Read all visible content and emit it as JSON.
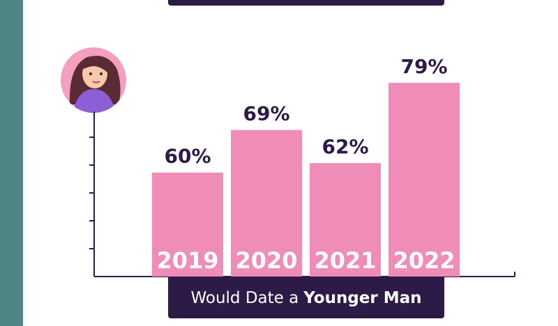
{
  "chart_data": {
    "type": "bar",
    "categories": [
      "2019",
      "2020",
      "2021",
      "2022"
    ],
    "values": [
      60,
      69,
      62,
      79
    ],
    "value_labels": [
      "60%",
      "69%",
      "62%",
      "79%"
    ],
    "color": "#f08cb8",
    "ylim": [
      38,
      80
    ],
    "x_label": [
      "Would Date a",
      "Younger Man"
    ]
  }
}
